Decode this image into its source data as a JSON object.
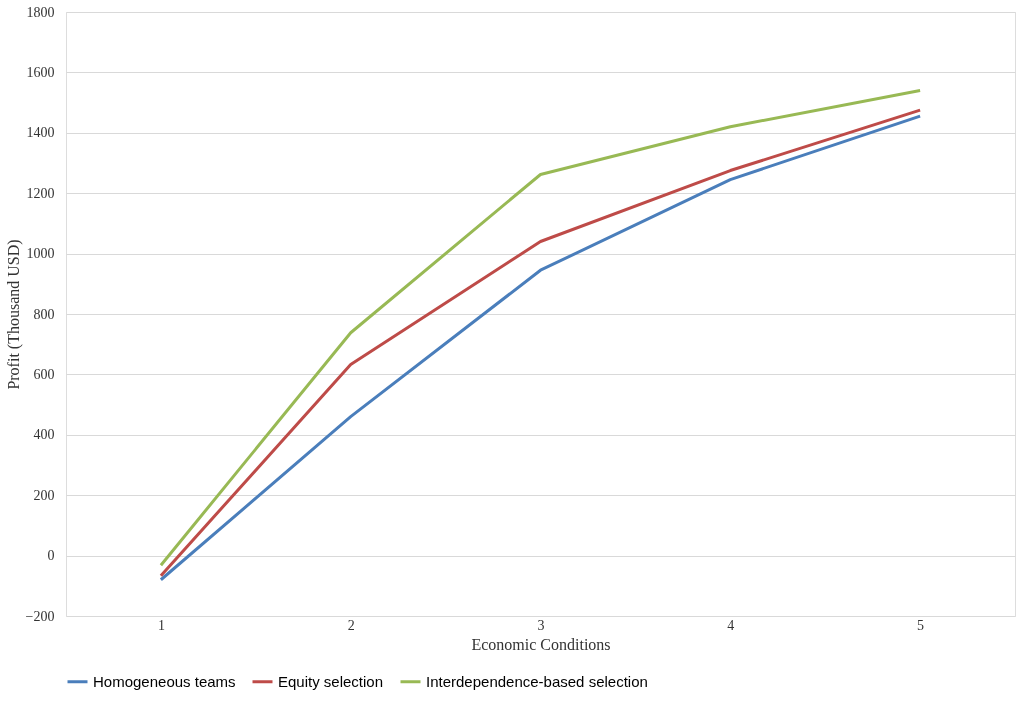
{
  "chart_data": {
    "type": "line",
    "xlabel": "Economic Conditions",
    "ylabel": "Profit (Thousand USD)",
    "categories": [
      "1",
      "2",
      "3",
      "4",
      "5"
    ],
    "series": [
      {
        "name": "Homogeneous teams",
        "color": "#4a7ebb",
        "values": [
          -80,
          460,
          945,
          1245,
          1455
        ]
      },
      {
        "name": "Equity selection",
        "color": "#be4b48",
        "values": [
          -67,
          633,
          1040,
          1275,
          1475
        ]
      },
      {
        "name": "Interdependence-based selection",
        "color": "#98b954",
        "values": [
          -32,
          738,
          1262,
          1420,
          1540
        ]
      }
    ],
    "ylim": [
      -200,
      1800
    ],
    "yticks": [
      -200,
      0,
      200,
      400,
      600,
      800,
      1000,
      1200,
      1400,
      1600,
      1800
    ],
    "grid": "y",
    "legend": "bottom",
    "marker": "none",
    "line_style": "solid"
  }
}
